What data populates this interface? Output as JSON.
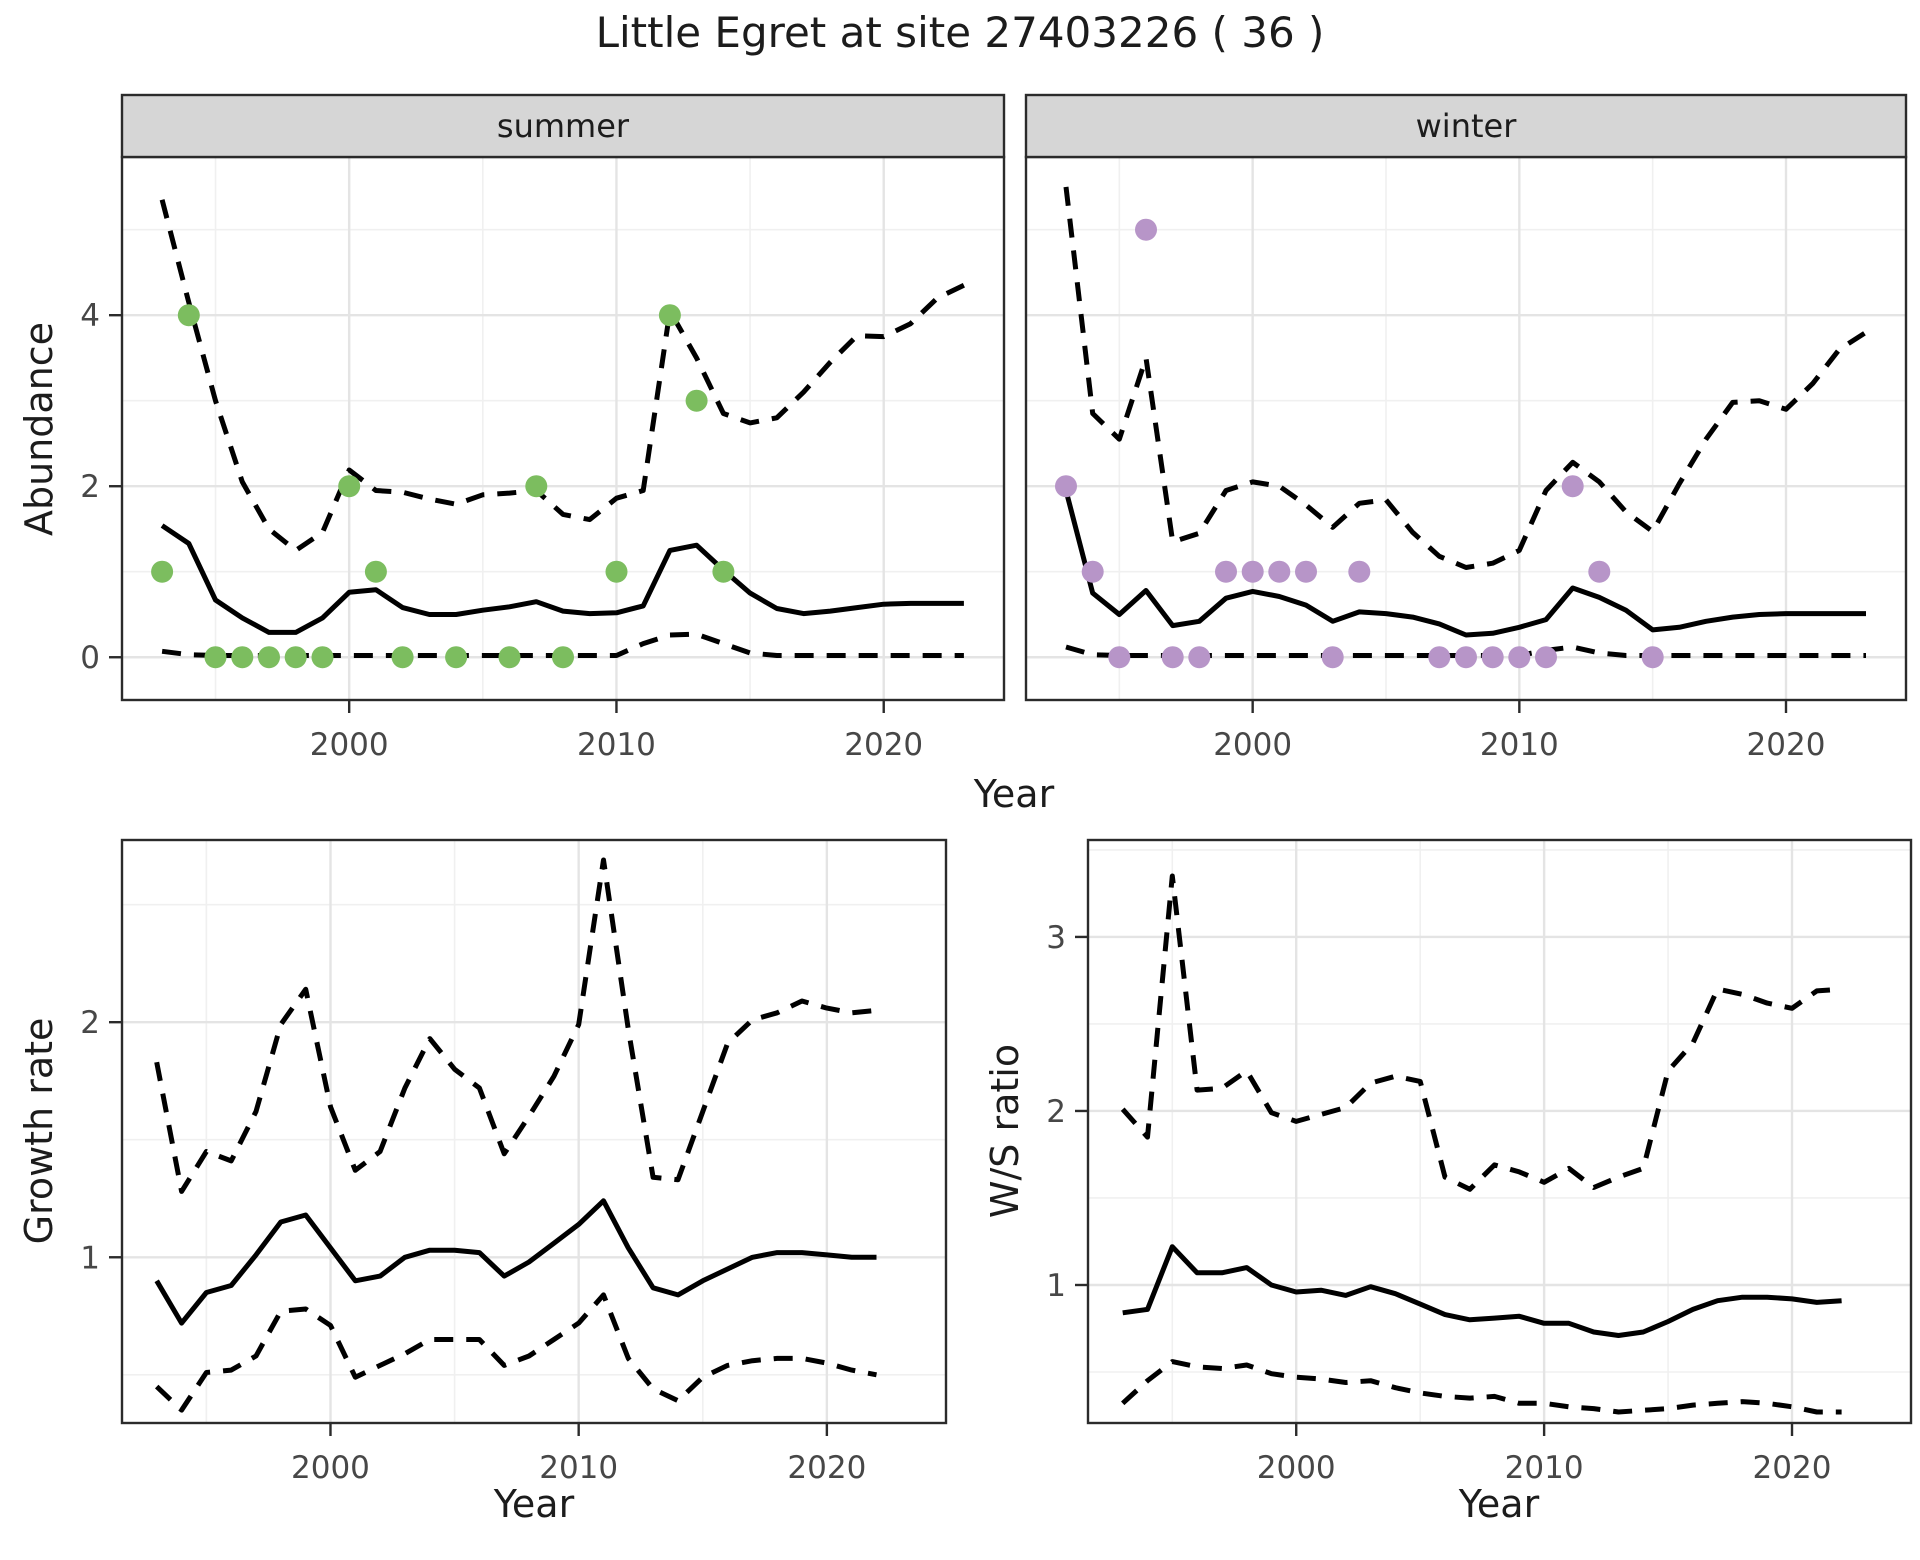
{
  "title": "Little Egret at site 27403226 ( 36 )",
  "colors": {
    "summer_point": "#7cbd5f",
    "winter_point": "#b795c8",
    "line": "#000000",
    "grid_major": "#e4e4e4",
    "grid_minor": "#f0f0f0",
    "panel_border": "#2b2b2b",
    "strip_fill": "#d6d6d6",
    "tick_label": "#474747",
    "background": "#ffffff"
  },
  "chart_data": [
    {
      "id": "abundance_summer",
      "type": "line",
      "title": "summer",
      "xlabel": "Year",
      "ylabel": "Abundance",
      "xlim": [
        1991.5,
        2024.5
      ],
      "ylim": [
        -0.5,
        5.85
      ],
      "x_ticks": [
        2000,
        2010,
        2020
      ],
      "x_minor": [
        1995,
        2005,
        2015
      ],
      "y_ticks": [
        0,
        2,
        4
      ],
      "y_minor": [
        1,
        3,
        5
      ],
      "grid": true,
      "legend": "none",
      "x": [
        1993,
        1994,
        1995,
        1996,
        1997,
        1998,
        1999,
        2000,
        2001,
        2002,
        2003,
        2004,
        2005,
        2006,
        2007,
        2008,
        2009,
        2010,
        2011,
        2012,
        2013,
        2014,
        2015,
        2016,
        2017,
        2018,
        2019,
        2020,
        2021,
        2022,
        2023
      ],
      "series": [
        {
          "name": "fit",
          "style": "solid",
          "values": [
            1.54,
            1.33,
            0.67,
            0.46,
            0.29,
            0.29,
            0.46,
            0.76,
            0.79,
            0.58,
            0.5,
            0.5,
            0.55,
            0.59,
            0.65,
            0.54,
            0.51,
            0.52,
            0.6,
            1.25,
            1.31,
            1.02,
            0.75,
            0.57,
            0.51,
            0.54,
            0.58,
            0.62,
            0.63,
            0.63,
            0.63
          ]
        },
        {
          "name": "upper_ci",
          "style": "dashed",
          "values": [
            5.35,
            4.15,
            3.0,
            2.05,
            1.5,
            1.25,
            1.46,
            2.19,
            1.95,
            1.93,
            1.85,
            1.79,
            1.9,
            1.92,
            1.95,
            1.67,
            1.61,
            1.86,
            1.95,
            4.05,
            3.5,
            2.85,
            2.74,
            2.8,
            3.1,
            3.45,
            3.76,
            3.75,
            3.9,
            4.2,
            4.35
          ]
        },
        {
          "name": "lower_ci",
          "style": "dashed",
          "values": [
            0.07,
            0.03,
            0.02,
            0.02,
            0.02,
            0.02,
            0.02,
            0.02,
            0.02,
            0.02,
            0.02,
            0.02,
            0.02,
            0.02,
            0.02,
            0.02,
            0.02,
            0.02,
            0.16,
            0.26,
            0.27,
            0.16,
            0.05,
            0.02,
            0.02,
            0.02,
            0.02,
            0.02,
            0.02,
            0.02,
            0.02
          ]
        }
      ],
      "scatter": {
        "name": "observed_counts",
        "color_key": "summer_point",
        "points": [
          [
            1993,
            1
          ],
          [
            1994,
            4
          ],
          [
            1995,
            0
          ],
          [
            1996,
            0
          ],
          [
            1997,
            0
          ],
          [
            1998,
            0
          ],
          [
            1999,
            0
          ],
          [
            2000,
            2
          ],
          [
            2001,
            1
          ],
          [
            2002,
            0
          ],
          [
            2004,
            0
          ],
          [
            2006,
            0
          ],
          [
            2007,
            2
          ],
          [
            2008,
            0
          ],
          [
            2010,
            1
          ],
          [
            2012,
            4
          ],
          [
            2013,
            3
          ],
          [
            2014,
            1
          ]
        ]
      }
    },
    {
      "id": "abundance_winter",
      "type": "line",
      "title": "winter",
      "xlabel": "Year",
      "ylabel": "Abundance",
      "xlim": [
        1991.5,
        2024.5
      ],
      "ylim": [
        -0.5,
        5.85
      ],
      "x_ticks": [
        2000,
        2010,
        2020
      ],
      "x_minor": [
        1995,
        2005,
        2015
      ],
      "y_ticks": [
        0,
        2,
        4
      ],
      "y_minor": [
        1,
        3,
        5
      ],
      "grid": true,
      "legend": "none",
      "x": [
        1993,
        1994,
        1995,
        1996,
        1997,
        1998,
        1999,
        2000,
        2001,
        2002,
        2003,
        2004,
        2005,
        2006,
        2007,
        2008,
        2009,
        2010,
        2011,
        2012,
        2013,
        2014,
        2015,
        2016,
        2017,
        2018,
        2019,
        2020,
        2021,
        2022,
        2023
      ],
      "series": [
        {
          "name": "fit",
          "style": "solid",
          "values": [
            1.95,
            0.75,
            0.5,
            0.78,
            0.37,
            0.42,
            0.69,
            0.77,
            0.71,
            0.61,
            0.42,
            0.53,
            0.51,
            0.47,
            0.39,
            0.26,
            0.28,
            0.35,
            0.44,
            0.81,
            0.7,
            0.55,
            0.32,
            0.35,
            0.42,
            0.47,
            0.5,
            0.51,
            0.51,
            0.51,
            0.51
          ]
        },
        {
          "name": "upper_ci",
          "style": "dashed",
          "values": [
            5.5,
            2.85,
            2.55,
            3.5,
            1.35,
            1.45,
            1.95,
            2.05,
            2.0,
            1.78,
            1.52,
            1.8,
            1.84,
            1.46,
            1.18,
            1.05,
            1.1,
            1.25,
            1.95,
            2.28,
            2.05,
            1.7,
            1.47,
            2.03,
            2.55,
            2.98,
            3.0,
            2.9,
            3.2,
            3.6,
            3.8
          ]
        },
        {
          "name": "lower_ci",
          "style": "dashed",
          "values": [
            0.12,
            0.03,
            0.02,
            0.02,
            0.02,
            0.02,
            0.02,
            0.02,
            0.02,
            0.02,
            0.02,
            0.02,
            0.02,
            0.02,
            0.02,
            0.02,
            0.02,
            0.02,
            0.08,
            0.12,
            0.05,
            0.02,
            0.02,
            0.02,
            0.02,
            0.02,
            0.02,
            0.02,
            0.02,
            0.02,
            0.02
          ]
        }
      ],
      "scatter": {
        "name": "observed_counts",
        "color_key": "winter_point",
        "points": [
          [
            1993,
            2
          ],
          [
            1994,
            1
          ],
          [
            1995,
            0
          ],
          [
            1996,
            5
          ],
          [
            1997,
            0
          ],
          [
            1998,
            0
          ],
          [
            1999,
            1
          ],
          [
            2000,
            1
          ],
          [
            2001,
            1
          ],
          [
            2002,
            1
          ],
          [
            2003,
            0
          ],
          [
            2004,
            1
          ],
          [
            2007,
            0
          ],
          [
            2008,
            0
          ],
          [
            2009,
            0
          ],
          [
            2010,
            0
          ],
          [
            2011,
            0
          ],
          [
            2012,
            2
          ],
          [
            2013,
            1
          ],
          [
            2015,
            0
          ]
        ]
      }
    },
    {
      "id": "growth_rate",
      "type": "line",
      "title": "",
      "xlabel": "Year",
      "ylabel": "Growth rate",
      "xlim": [
        1991.6,
        2024.8
      ],
      "ylim": [
        0.295,
        2.775
      ],
      "x_ticks": [
        2000,
        2010,
        2020
      ],
      "x_minor": [
        1995,
        2005,
        2015
      ],
      "y_ticks": [
        1,
        2
      ],
      "y_minor": [
        0.5,
        1.5,
        2.5
      ],
      "grid": true,
      "legend": "none",
      "x": [
        1993,
        1994,
        1995,
        1996,
        1997,
        1998,
        1999,
        2000,
        2001,
        2002,
        2003,
        2004,
        2005,
        2006,
        2007,
        2008,
        2009,
        2010,
        2011,
        2012,
        2013,
        2014,
        2015,
        2016,
        2017,
        2018,
        2019,
        2020,
        2021,
        2022
      ],
      "series": [
        {
          "name": "fit",
          "style": "solid",
          "values": [
            0.9,
            0.72,
            0.85,
            0.88,
            1.01,
            1.15,
            1.18,
            1.04,
            0.9,
            0.92,
            1.0,
            1.03,
            1.03,
            1.02,
            0.92,
            0.98,
            1.06,
            1.14,
            1.24,
            1.04,
            0.87,
            0.84,
            0.9,
            0.95,
            1.0,
            1.02,
            1.02,
            1.01,
            1.0,
            1.0
          ]
        },
        {
          "name": "upper_ci",
          "style": "dashed",
          "values": [
            1.83,
            1.28,
            1.45,
            1.41,
            1.62,
            1.99,
            2.14,
            1.64,
            1.37,
            1.45,
            1.72,
            1.93,
            1.8,
            1.72,
            1.44,
            1.6,
            1.77,
            1.99,
            2.69,
            1.97,
            1.34,
            1.33,
            1.62,
            1.91,
            2.01,
            2.04,
            2.09,
            2.06,
            2.04,
            2.05
          ]
        },
        {
          "name": "lower_ci",
          "style": "dashed",
          "values": [
            0.45,
            0.35,
            0.51,
            0.52,
            0.58,
            0.77,
            0.78,
            0.71,
            0.49,
            0.54,
            0.59,
            0.65,
            0.65,
            0.65,
            0.54,
            0.58,
            0.65,
            0.72,
            0.84,
            0.57,
            0.44,
            0.39,
            0.49,
            0.54,
            0.56,
            0.57,
            0.57,
            0.55,
            0.52,
            0.5
          ]
        }
      ],
      "scatter": null
    },
    {
      "id": "ws_ratio",
      "type": "line",
      "title": "",
      "xlabel": "Year",
      "ylabel": "W/S ratio",
      "xlim": [
        1991.6,
        2024.8
      ],
      "ylim": [
        0.207,
        3.557
      ],
      "x_ticks": [
        2000,
        2010,
        2020
      ],
      "x_minor": [
        1995,
        2005,
        2015
      ],
      "y_ticks": [
        1,
        2,
        3
      ],
      "y_minor": [
        0.5,
        1.5,
        2.5,
        3.5
      ],
      "grid": true,
      "legend": "none",
      "x": [
        1993,
        1994,
        1995,
        1996,
        1997,
        1998,
        1999,
        2000,
        2001,
        2002,
        2003,
        2004,
        2005,
        2006,
        2007,
        2008,
        2009,
        2010,
        2011,
        2012,
        2013,
        2014,
        2015,
        2016,
        2017,
        2018,
        2019,
        2020,
        2021,
        2022
      ],
      "series": [
        {
          "name": "fit",
          "style": "solid",
          "values": [
            0.84,
            0.86,
            1.22,
            1.07,
            1.07,
            1.1,
            1.0,
            0.96,
            0.97,
            0.94,
            0.99,
            0.95,
            0.89,
            0.83,
            0.8,
            0.81,
            0.82,
            0.78,
            0.78,
            0.73,
            0.71,
            0.73,
            0.79,
            0.86,
            0.91,
            0.93,
            0.93,
            0.92,
            0.9,
            0.91
          ]
        },
        {
          "name": "upper_ci",
          "style": "dashed",
          "values": [
            2.01,
            1.85,
            3.35,
            2.12,
            2.13,
            2.23,
            1.99,
            1.94,
            1.98,
            2.02,
            2.16,
            2.2,
            2.17,
            1.62,
            1.55,
            1.69,
            1.65,
            1.59,
            1.67,
            1.56,
            1.62,
            1.67,
            2.23,
            2.39,
            2.7,
            2.67,
            2.62,
            2.59,
            2.69,
            2.7
          ]
        },
        {
          "name": "lower_ci",
          "style": "dashed",
          "values": [
            0.32,
            0.45,
            0.56,
            0.53,
            0.52,
            0.54,
            0.49,
            0.47,
            0.46,
            0.44,
            0.45,
            0.41,
            0.38,
            0.36,
            0.35,
            0.36,
            0.32,
            0.32,
            0.3,
            0.29,
            0.27,
            0.28,
            0.29,
            0.31,
            0.32,
            0.33,
            0.32,
            0.3,
            0.27,
            0.27
          ]
        }
      ],
      "scatter": null
    }
  ]
}
